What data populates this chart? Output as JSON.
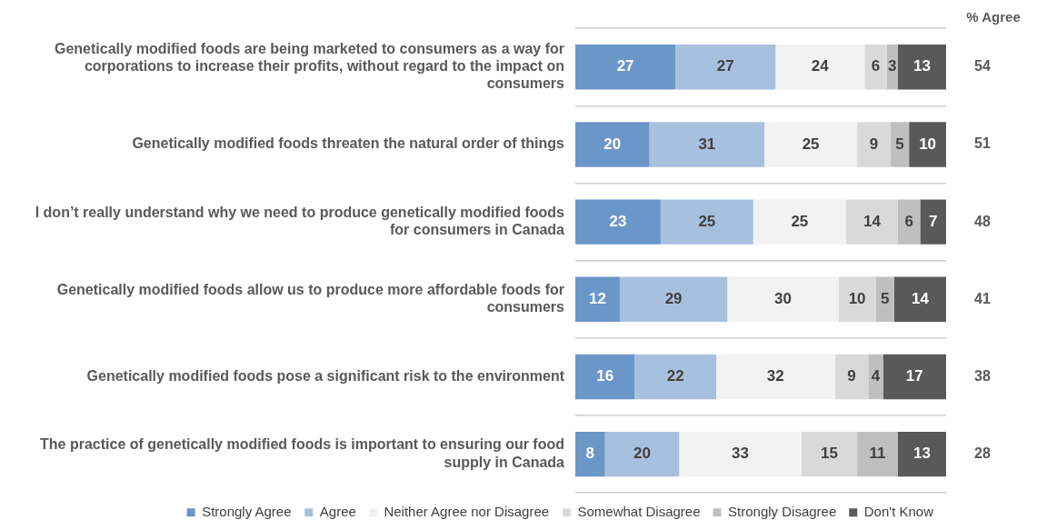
{
  "chart_data": {
    "type": "bar",
    "orientation": "horizontal",
    "stacked": true,
    "categories": [
      "Genetically modified foods are being marketed to consumers as a way for corporations to increase their profits, without regard to the impact on consumers",
      "Genetically modified foods threaten the natural order of things",
      "I don’t really understand why we need to produce genetically modified foods for consumers in Canada",
      "Genetically modified foods allow us to produce more affordable foods for consumers",
      "Genetically modified foods pose a significant risk to the environment",
      "The practice of genetically modified foods is important to ensuring our food supply in Canada"
    ],
    "series": [
      {
        "name": "Strongly Agree",
        "color": "#6b96c8",
        "values": [
          27,
          20,
          23,
          12,
          16,
          8
        ]
      },
      {
        "name": "Agree",
        "color": "#a7c0de",
        "values": [
          27,
          31,
          25,
          29,
          22,
          20
        ]
      },
      {
        "name": "Neither Agree nor Disagree",
        "color": "#f2f2f2",
        "values": [
          24,
          25,
          25,
          30,
          32,
          33
        ]
      },
      {
        "name": "Somewhat Disagree",
        "color": "#d9d9d9",
        "values": [
          6,
          9,
          14,
          10,
          9,
          15
        ]
      },
      {
        "name": "Strongly Disagree",
        "color": "#bfbfbf",
        "values": [
          3,
          5,
          6,
          5,
          4,
          11
        ]
      },
      {
        "name": "Don't Know",
        "color": "#595959",
        "values": [
          13,
          10,
          7,
          14,
          17,
          13
        ]
      }
    ],
    "xlim": [
      0,
      100
    ],
    "tick_labels": "y",
    "grid": "y",
    "data_labels": true,
    "legend": "bottom",
    "annotations": [
      "% Agree",
      "54",
      "51",
      "48",
      "41",
      "38",
      "28"
    ]
  }
}
